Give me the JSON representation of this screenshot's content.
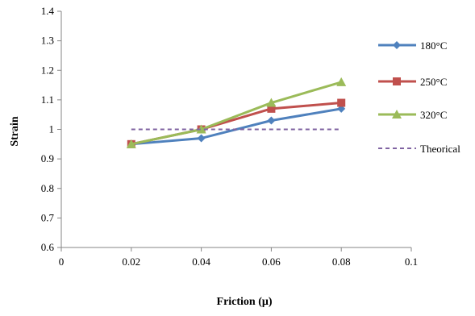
{
  "chart_data": {
    "type": "line",
    "title": "",
    "xlabel": "Friction (μ)",
    "ylabel": "Strain",
    "xlim": [
      0,
      0.1
    ],
    "ylim": [
      0.6,
      1.4
    ],
    "x_ticks": [
      "0",
      "0.02",
      "0.04",
      "0.06",
      "0.08",
      "0.1"
    ],
    "y_ticks": [
      "0.6",
      "0.7",
      "0.8",
      "0.9",
      "1",
      "1.1",
      "1.2",
      "1.3",
      "1.4"
    ],
    "grid": false,
    "legend_position": "right",
    "x": [
      0.02,
      0.04,
      0.06,
      0.08
    ],
    "series": [
      {
        "name": "180°C",
        "color": "#4f81bd",
        "marker": "diamond",
        "line": "solid",
        "values": [
          0.95,
          0.97,
          1.03,
          1.07
        ]
      },
      {
        "name": "250°C",
        "color": "#c0504d",
        "marker": "square",
        "line": "solid",
        "values": [
          0.95,
          1.0,
          1.07,
          1.09
        ]
      },
      {
        "name": "320°C",
        "color": "#9bbb59",
        "marker": "triangle",
        "line": "solid",
        "values": [
          0.95,
          1.0,
          1.09,
          1.16
        ]
      },
      {
        "name": "Theorical",
        "color": "#8064a2",
        "marker": "none",
        "line": "dashed",
        "values": [
          1.0,
          1.0,
          1.0,
          1.0
        ]
      }
    ]
  }
}
